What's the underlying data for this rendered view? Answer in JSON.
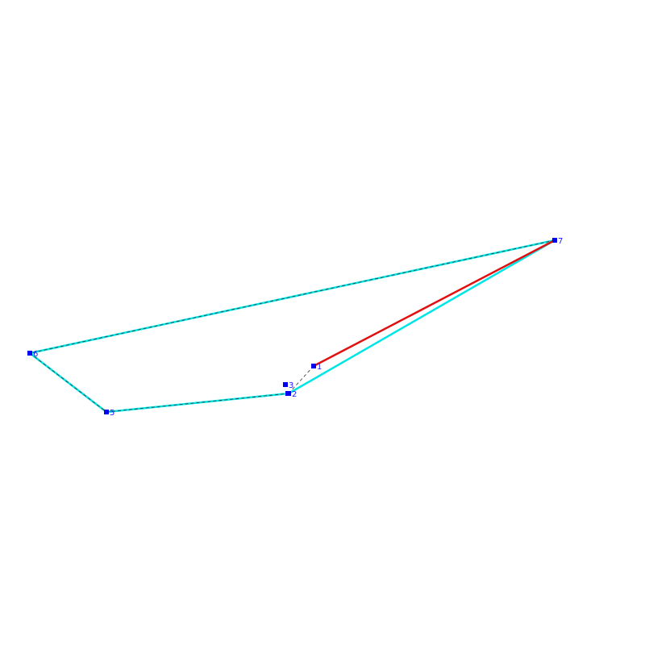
{
  "nodes": [
    {
      "label": "1"
    },
    {
      "label": "2"
    },
    {
      "label": "3"
    },
    {
      "label": "5"
    },
    {
      "label": "6"
    },
    {
      "label": "7"
    }
  ]
}
